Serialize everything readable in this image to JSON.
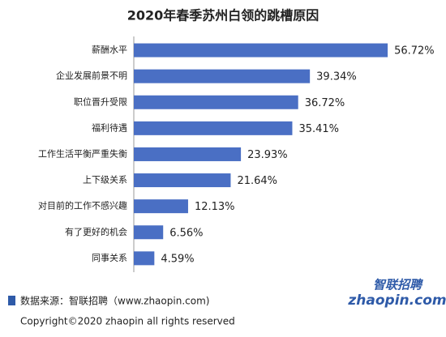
{
  "chart_data": {
    "type": "bar",
    "orientation": "horizontal",
    "title": "2020年春季苏州白领的跳槽原因",
    "categories": [
      "薪酬水平",
      "企业发展前景不明",
      "职位晋升受限",
      "福利待遇",
      "工作生活平衡严重失衡",
      "上下级关系",
      "对目前的工作不感兴趣",
      "有了更好的机会",
      "同事关系"
    ],
    "values": [
      56.72,
      39.34,
      36.72,
      35.41,
      23.93,
      21.64,
      12.13,
      6.56,
      4.59
    ],
    "value_labels": [
      "56.72%",
      "39.34%",
      "36.72%",
      "35.41%",
      "23.93%",
      "21.64%",
      "12.13%",
      "6.56%",
      "4.59%"
    ],
    "color": "#4a6fc4"
  },
  "footer": {
    "source": "数据来源：智联招聘（www.zhaopin.com)",
    "copyright": "Copyright©2020 zhaopin all rights reserved"
  },
  "logo": {
    "brand": "智联招聘",
    "domain": "zhaopin.com"
  }
}
